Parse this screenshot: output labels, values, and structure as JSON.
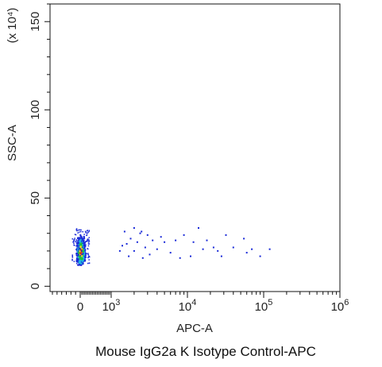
{
  "chart_data": {
    "type": "scatter",
    "title": "Mouse IgG2a K Isotype Control-APC",
    "xlabel": "APC-A",
    "ylabel": "SSC-A",
    "ylabel_multiplier": "(x 10⁴)",
    "x_scale": "biexponential",
    "y_scale": "linear",
    "xlim": [
      -300,
      1000000
    ],
    "ylim": [
      -3,
      160
    ],
    "x_ticks": [
      {
        "value": 0,
        "base": "0",
        "exp": ""
      },
      {
        "value": 1000,
        "base": "10",
        "exp": "3"
      },
      {
        "value": 10000,
        "base": "10",
        "exp": "4"
      },
      {
        "value": 100000,
        "base": "10",
        "exp": "5"
      },
      {
        "value": 1000000,
        "base": "10",
        "exp": "6"
      }
    ],
    "y_ticks": [
      {
        "value": 0,
        "label": "0"
      },
      {
        "value": 50,
        "label": "50"
      },
      {
        "value": 100,
        "label": "100"
      },
      {
        "value": 150,
        "label": "150"
      }
    ],
    "grid": false,
    "legend": "none",
    "colors": {
      "density_high": "#d21c1c",
      "density_mid_high": "#f0e020",
      "density_mid": "#20c040",
      "density_low_mid": "#20b8e0",
      "density_low": "#1a2ad8"
    },
    "points": [
      {
        "x": 2000,
        "y": 33
      },
      {
        "x": 2500,
        "y": 31
      },
      {
        "x": 1500,
        "y": 31
      },
      {
        "x": 3000,
        "y": 29
      },
      {
        "x": 1800,
        "y": 27
      },
      {
        "x": 2200,
        "y": 25
      },
      {
        "x": 1600,
        "y": 24
      },
      {
        "x": 2800,
        "y": 22
      },
      {
        "x": 2000,
        "y": 20
      },
      {
        "x": 3200,
        "y": 18
      },
      {
        "x": 1700,
        "y": 17
      },
      {
        "x": 2600,
        "y": 16
      },
      {
        "x": 4000,
        "y": 21
      },
      {
        "x": 5000,
        "y": 25
      },
      {
        "x": 7000,
        "y": 26
      },
      {
        "x": 9000,
        "y": 29
      },
      {
        "x": 6000,
        "y": 19
      },
      {
        "x": 8000,
        "y": 16
      },
      {
        "x": 11000,
        "y": 17
      },
      {
        "x": 14000,
        "y": 33
      },
      {
        "x": 18000,
        "y": 26
      },
      {
        "x": 22000,
        "y": 22
      },
      {
        "x": 25000,
        "y": 20
      },
      {
        "x": 28000,
        "y": 17
      },
      {
        "x": 32000,
        "y": 29
      },
      {
        "x": 40000,
        "y": 22
      },
      {
        "x": 55000,
        "y": 27
      },
      {
        "x": 60000,
        "y": 19
      },
      {
        "x": 70000,
        "y": 21
      },
      {
        "x": 90000,
        "y": 17
      },
      {
        "x": 120000,
        "y": 21
      },
      {
        "x": 3500,
        "y": 26
      },
      {
        "x": 4500,
        "y": 28
      },
      {
        "x": 1300,
        "y": 20
      },
      {
        "x": 1400,
        "y": 23
      },
      {
        "x": 2400,
        "y": 30
      },
      {
        "x": 12000,
        "y": 25
      },
      {
        "x": 16000,
        "y": 21
      }
    ],
    "cluster": {
      "x_center": 0,
      "y_center": 20,
      "x_spread": 160,
      "y_range": [
        13,
        33
      ]
    }
  }
}
